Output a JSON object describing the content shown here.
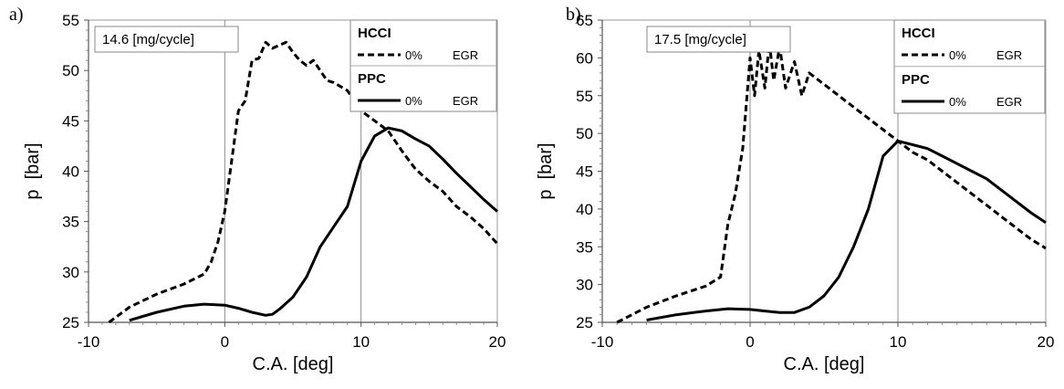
{
  "chart_data": [
    {
      "type": "line",
      "panel_label": "a)",
      "annotation": "14.6 [mg/cycle]",
      "xlabel": "C.A. [deg]",
      "ylabel": "p  [bar]",
      "xlim": [
        -10,
        20
      ],
      "ylim": [
        25,
        55
      ],
      "xticks": [
        "-10",
        "0",
        "10",
        "20"
      ],
      "yticks": [
        "25",
        "30",
        "35",
        "40",
        "45",
        "50",
        "55"
      ],
      "grid": "vertical",
      "legend": [
        {
          "title": "HCCI",
          "pct": "0%",
          "egr": "EGR",
          "style": "dashed"
        },
        {
          "title": "PPC",
          "pct": "0%",
          "egr": "EGR",
          "style": "solid"
        }
      ],
      "series": [
        {
          "name": "HCCI",
          "style": "dashed",
          "x": [
            -8.5,
            -7,
            -5,
            -3,
            -1.5,
            -1,
            -0.5,
            0,
            0.5,
            1,
            1.5,
            2,
            2.5,
            3,
            3.5,
            4,
            4.5,
            5,
            5.5,
            6,
            6.5,
            7,
            7.5,
            8,
            9,
            10,
            11,
            12,
            13,
            14,
            15,
            16,
            17,
            18,
            19,
            20
          ],
          "y": [
            25,
            26.5,
            27.8,
            28.8,
            29.8,
            31,
            33,
            36,
            41,
            46,
            47,
            51,
            51.2,
            52.8,
            52.2,
            52.5,
            52.8,
            51.8,
            51,
            50.5,
            51,
            50,
            49,
            48.8,
            48,
            46,
            45,
            44,
            42,
            40.2,
            39,
            38,
            36.5,
            35.5,
            34.3,
            32.8
          ]
        },
        {
          "name": "PPC",
          "style": "solid",
          "x": [
            -7,
            -5,
            -3,
            -1.5,
            0,
            1,
            2,
            3,
            3.5,
            4,
            5,
            6,
            7,
            8,
            9,
            10,
            11,
            12,
            13,
            14,
            15,
            16,
            17,
            18,
            19,
            20
          ],
          "y": [
            25.2,
            26,
            26.6,
            26.8,
            26.7,
            26.4,
            26,
            25.7,
            25.8,
            26.3,
            27.5,
            29.5,
            32.5,
            34.5,
            36.5,
            41,
            43.5,
            44.3,
            44,
            43.2,
            42.5,
            41.2,
            39.8,
            38.5,
            37.2,
            36
          ]
        }
      ]
    },
    {
      "type": "line",
      "panel_label": "b)",
      "annotation": "17.5 [mg/cycle]",
      "xlabel": "C.A. [deg]",
      "ylabel": "p  [bar]",
      "xlim": [
        -10,
        20
      ],
      "ylim": [
        25,
        65
      ],
      "xticks": [
        "-10",
        "0",
        "10",
        "20"
      ],
      "yticks": [
        "25",
        "30",
        "35",
        "40",
        "45",
        "50",
        "55",
        "60",
        "65"
      ],
      "grid": "vertical",
      "legend": [
        {
          "title": "HCCI",
          "pct": "0%",
          "egr": "EGR",
          "style": "dashed"
        },
        {
          "title": "PPC",
          "pct": "0%",
          "egr": "EGR",
          "style": "solid"
        }
      ],
      "series": [
        {
          "name": "HCCI",
          "style": "dashed",
          "x": [
            -9,
            -7,
            -5,
            -3,
            -2,
            -1.5,
            -1,
            -0.5,
            0,
            0.3,
            0.6,
            1,
            1.3,
            1.6,
            2,
            2.4,
            3,
            3.5,
            4,
            5,
            6,
            7,
            8,
            9,
            10,
            11,
            12,
            13,
            14,
            15,
            16,
            17,
            18,
            19,
            20
          ],
          "y": [
            25,
            27,
            28.5,
            29.8,
            31,
            38,
            42,
            48,
            60,
            55,
            61,
            56,
            62,
            57,
            61.5,
            56,
            59.5,
            55,
            58,
            56.5,
            55,
            53.5,
            52,
            50.5,
            49,
            47.5,
            46.5,
            45,
            43.5,
            42,
            40.5,
            39,
            37.5,
            36,
            34.8
          ]
        },
        {
          "name": "PPC",
          "style": "solid",
          "x": [
            -7,
            -5,
            -3,
            -1.5,
            0,
            1,
            2,
            3,
            4,
            5,
            6,
            7,
            8,
            9,
            10,
            11,
            12,
            13,
            14,
            15,
            16,
            17,
            18,
            19,
            20
          ],
          "y": [
            25.3,
            26,
            26.5,
            26.8,
            26.7,
            26.5,
            26.3,
            26.3,
            27,
            28.5,
            31,
            35,
            40,
            47,
            49,
            48.5,
            48,
            47,
            46,
            45,
            44,
            42.5,
            41,
            39.5,
            38.2
          ]
        }
      ]
    }
  ]
}
